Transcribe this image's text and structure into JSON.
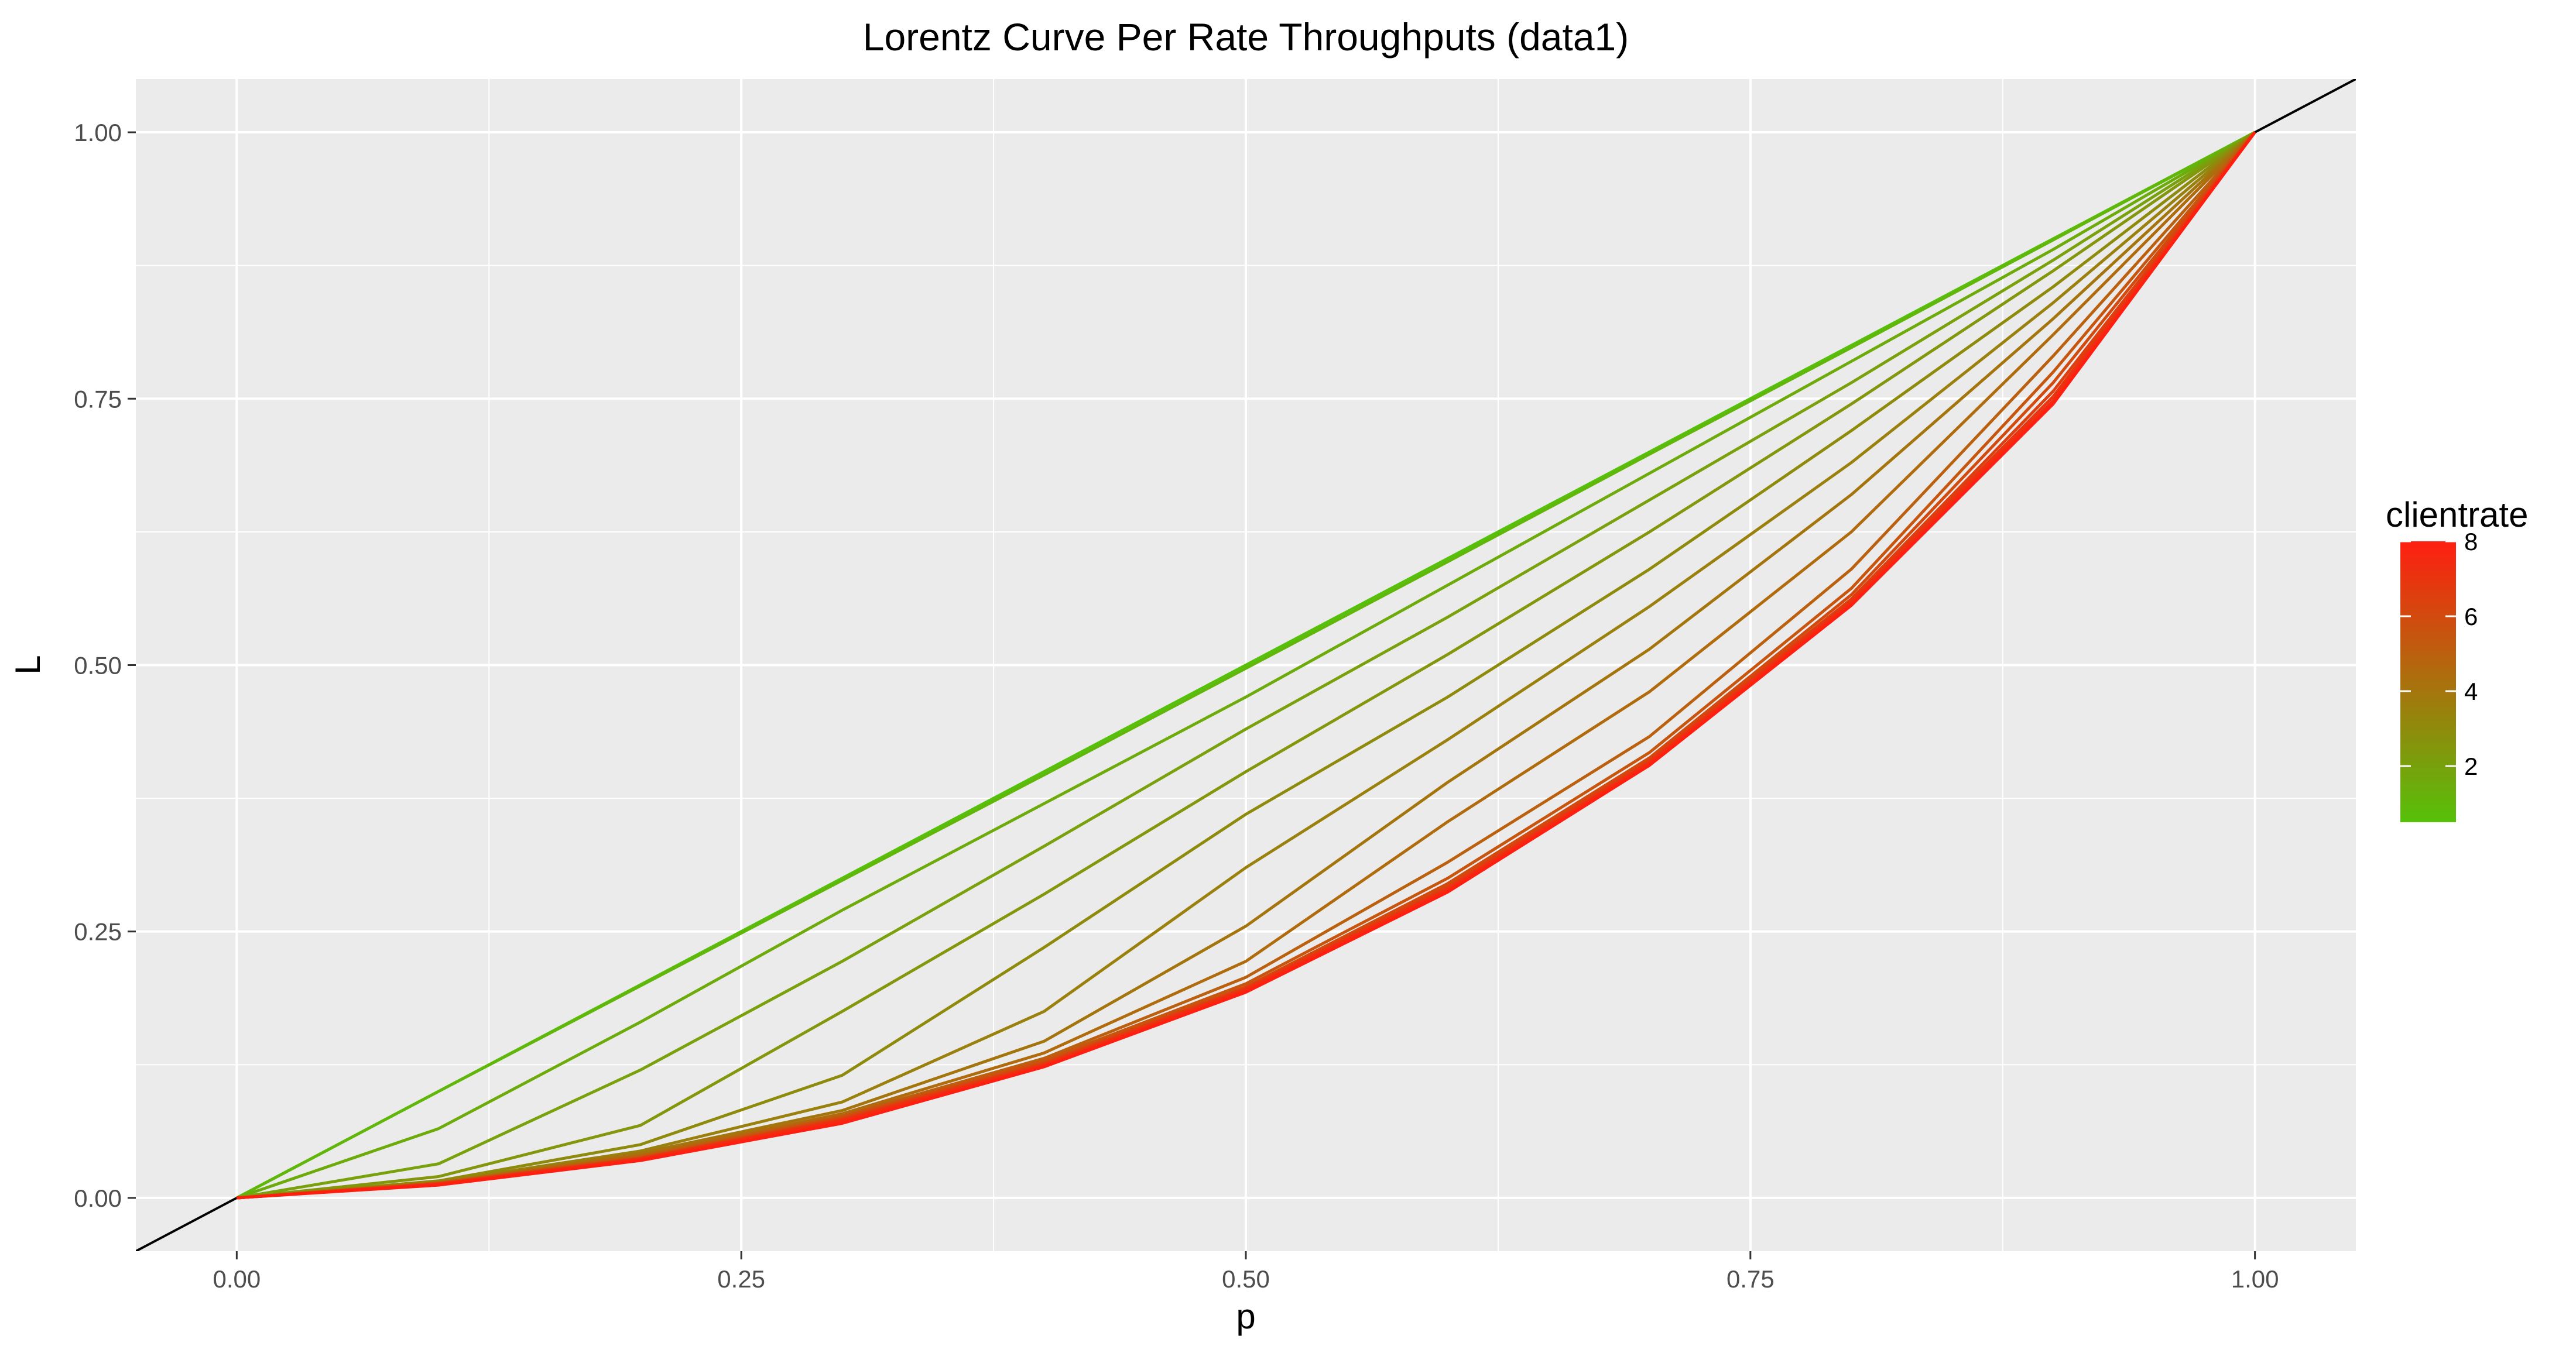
{
  "chart_data": {
    "type": "line",
    "title": "Lorentz Curve Per Rate Throughputs (data1)",
    "xlabel": "p",
    "ylabel": "L",
    "xlim": [
      -0.05,
      1.05
    ],
    "ylim": [
      -0.05,
      1.05
    ],
    "x_ticks": [
      0,
      0.25,
      0.5,
      0.75,
      1
    ],
    "x_tick_labels": [
      "0.00",
      "0.25",
      "0.50",
      "0.75",
      "1.00"
    ],
    "y_ticks": [
      0,
      0.25,
      0.5,
      0.75,
      1
    ],
    "y_tick_labels": [
      "0.00",
      "0.25",
      "0.50",
      "0.75",
      "1.00"
    ],
    "grid": true,
    "reference_line": "y = x",
    "legend": {
      "title": "clientrate",
      "placement": "right",
      "type": "gradient",
      "range": [
        0.5,
        8
      ],
      "ticks": [
        2,
        4,
        6,
        8
      ],
      "tick_labels": [
        "2",
        "4",
        "6",
        "8"
      ],
      "low_color": "#56c10a",
      "high_color": "#ff1f10"
    },
    "x": [
      0,
      0.1,
      0.2,
      0.3,
      0.4,
      0.5,
      0.6,
      0.7,
      0.8,
      0.9,
      1.0
    ],
    "series": [
      {
        "clientrate": 0.5,
        "values": [
          0,
          0.1,
          0.2,
          0.3,
          0.4,
          0.5,
          0.6,
          0.7,
          0.8,
          0.9,
          1.0
        ]
      },
      {
        "clientrate": 1.0,
        "values": [
          0,
          0.1,
          0.199,
          0.298,
          0.397,
          0.497,
          0.597,
          0.698,
          0.798,
          0.899,
          1.0
        ]
      },
      {
        "clientrate": 1.5,
        "values": [
          0,
          0.065,
          0.165,
          0.27,
          0.37,
          0.47,
          0.575,
          0.68,
          0.785,
          0.89,
          1.0
        ]
      },
      {
        "clientrate": 2.0,
        "values": [
          0,
          0.032,
          0.12,
          0.222,
          0.33,
          0.44,
          0.545,
          0.655,
          0.765,
          0.88,
          1.0
        ]
      },
      {
        "clientrate": 2.5,
        "values": [
          0,
          0.02,
          0.068,
          0.175,
          0.285,
          0.4,
          0.51,
          0.625,
          0.745,
          0.87,
          1.0
        ]
      },
      {
        "clientrate": 3.0,
        "values": [
          0,
          0.016,
          0.05,
          0.115,
          0.235,
          0.36,
          0.47,
          0.59,
          0.72,
          0.855,
          1.0
        ]
      },
      {
        "clientrate": 3.5,
        "values": [
          0,
          0.015,
          0.044,
          0.09,
          0.175,
          0.31,
          0.43,
          0.555,
          0.69,
          0.84,
          1.0
        ]
      },
      {
        "clientrate": 4.0,
        "values": [
          0,
          0.014,
          0.042,
          0.082,
          0.147,
          0.255,
          0.39,
          0.515,
          0.66,
          0.825,
          1.0
        ]
      },
      {
        "clientrate": 4.5,
        "values": [
          0,
          0.014,
          0.04,
          0.079,
          0.136,
          0.222,
          0.353,
          0.475,
          0.625,
          0.81,
          1.0
        ]
      },
      {
        "clientrate": 5.0,
        "values": [
          0,
          0.014,
          0.039,
          0.077,
          0.131,
          0.207,
          0.315,
          0.433,
          0.59,
          0.79,
          1.0
        ]
      },
      {
        "clientrate": 5.5,
        "values": [
          0,
          0.014,
          0.038,
          0.076,
          0.129,
          0.201,
          0.3,
          0.418,
          0.572,
          0.775,
          1.0
        ]
      },
      {
        "clientrate": 6.0,
        "values": [
          0,
          0.013,
          0.037,
          0.075,
          0.127,
          0.198,
          0.295,
          0.413,
          0.566,
          0.765,
          1.0
        ]
      },
      {
        "clientrate": 6.5,
        "values": [
          0,
          0.013,
          0.037,
          0.074,
          0.126,
          0.197,
          0.292,
          0.411,
          0.562,
          0.757,
          1.0
        ]
      },
      {
        "clientrate": 7.0,
        "values": [
          0,
          0.013,
          0.037,
          0.073,
          0.125,
          0.196,
          0.29,
          0.409,
          0.56,
          0.752,
          1.0
        ]
      },
      {
        "clientrate": 7.5,
        "values": [
          0,
          0.013,
          0.036,
          0.072,
          0.124,
          0.195,
          0.289,
          0.408,
          0.558,
          0.748,
          1.0
        ]
      },
      {
        "clientrate": 8.0,
        "values": [
          0,
          0.012,
          0.035,
          0.07,
          0.123,
          0.193,
          0.287,
          0.406,
          0.556,
          0.745,
          1.0
        ]
      }
    ]
  }
}
